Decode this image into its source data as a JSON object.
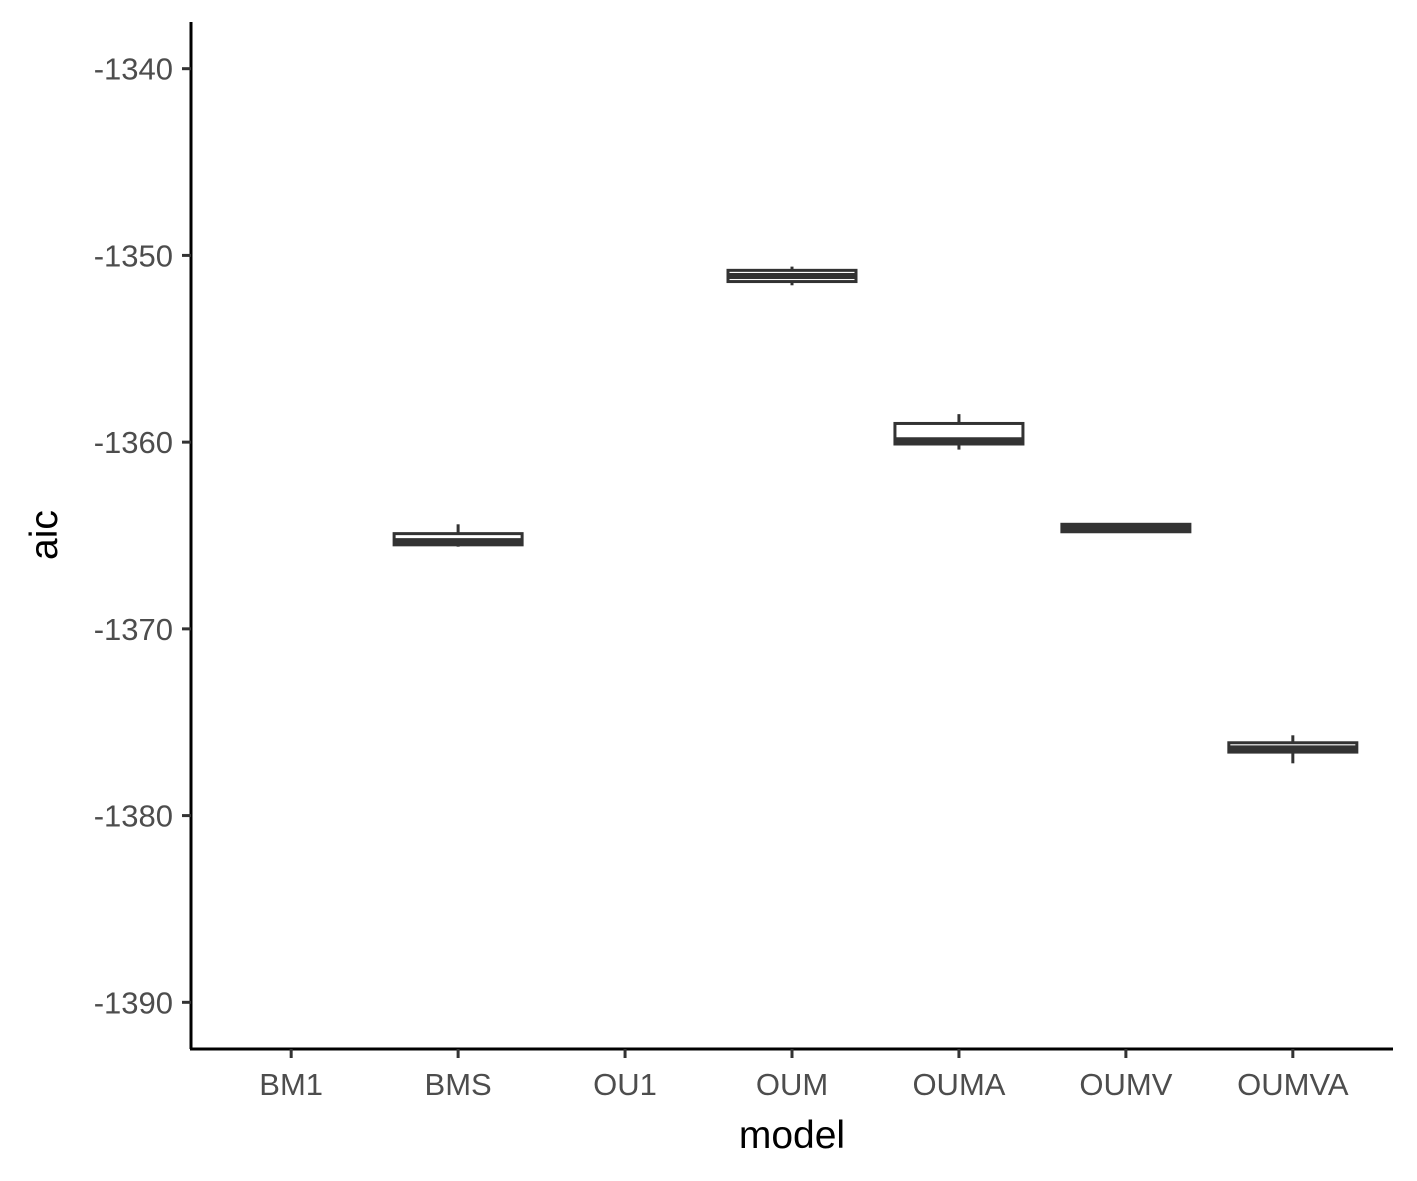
{
  "chart_data": {
    "type": "boxplot",
    "title": "",
    "xlabel": "model",
    "ylabel": "aic",
    "ylim": [
      -1392.5,
      -1337.5
    ],
    "y_ticks": [
      -1340,
      -1350,
      -1360,
      -1370,
      -1380,
      -1390
    ],
    "y_tick_labels": [
      "-1340",
      "-1350",
      "-1360",
      "-1370",
      "-1380",
      "-1390"
    ],
    "categories": [
      "BM1",
      "BMS",
      "OU1",
      "OUM",
      "OUMA",
      "OUMV",
      "OUMVA"
    ],
    "grid": false,
    "legend": "none",
    "colors": {
      "box_stroke": "#333333",
      "box_fill": "#ffffff",
      "axis": "#000000",
      "tick_text": "#4d4d4d"
    },
    "boxes": [
      null,
      {
        "category": "BMS",
        "whisker_low": -1365.6,
        "q1": -1365.5,
        "median": -1365.3,
        "q3": -1364.9,
        "whisker_high": -1364.4
      },
      null,
      {
        "category": "OUM",
        "whisker_low": -1351.6,
        "q1": -1351.4,
        "median": -1351.1,
        "q3": -1350.8,
        "whisker_high": -1350.6
      },
      {
        "category": "OUMA",
        "whisker_low": -1360.4,
        "q1": -1360.1,
        "median": -1359.9,
        "q3": -1359.0,
        "whisker_high": -1358.5
      },
      {
        "category": "OUMV",
        "whisker_low": -1364.8,
        "q1": -1364.8,
        "median": -1364.6,
        "q3": -1364.4,
        "whisker_high": -1364.4
      },
      {
        "category": "OUMVA",
        "whisker_low": -1377.2,
        "q1": -1376.6,
        "median": -1376.4,
        "q3": -1376.1,
        "whisker_high": -1375.7
      }
    ]
  }
}
